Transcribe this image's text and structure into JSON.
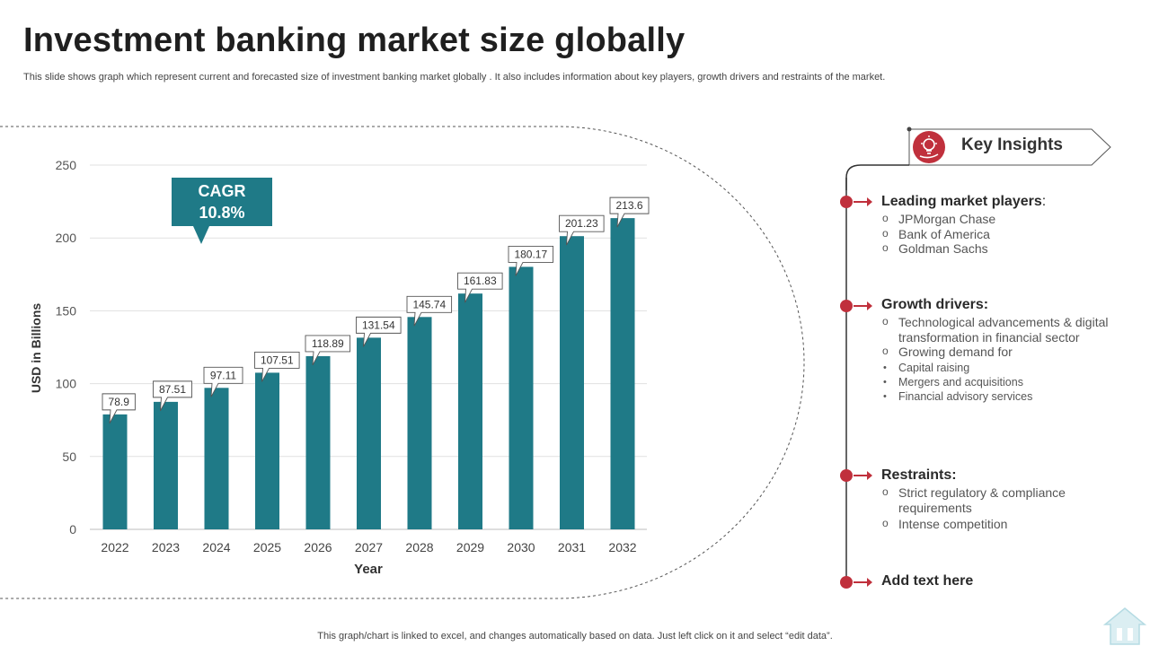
{
  "header": {
    "title": "Investment banking market size globally",
    "subtitle": "This slide shows graph which represent current and forecasted size of investment banking market globally . It also includes information about key players, growth drivers and restraints of the market."
  },
  "chart_data": {
    "type": "bar",
    "categories": [
      "2022",
      "2023",
      "2024",
      "2025",
      "2026",
      "2027",
      "2028",
      "2029",
      "2030",
      "2031",
      "2032"
    ],
    "values": [
      78.9,
      87.51,
      97.11,
      107.51,
      118.89,
      131.54,
      145.74,
      161.83,
      180.17,
      201.23,
      213.6
    ],
    "data_labels": [
      "78.9",
      "87.51",
      "97.11",
      "107.51",
      "118.89",
      "131.54",
      "145.74",
      "161.83",
      "180.17",
      "201.23",
      "213.6"
    ],
    "xlabel": "Year",
    "ylabel": "USD in Billions",
    "ylim": [
      0,
      250
    ],
    "yticks": [
      0,
      50,
      100,
      150,
      200,
      250
    ],
    "bar_color": "#1f7a87",
    "grid": true,
    "annotation": {
      "label": "CAGR",
      "value": "10.8%"
    }
  },
  "insights": {
    "title": "Key Insights",
    "accent": "#c0303c",
    "sections": [
      {
        "heading": "Leading market players",
        "heading_suffix": ":",
        "items": [
          "JPMorgan Chase",
          "Bank of America",
          "Goldman Sachs"
        ]
      },
      {
        "heading": "Growth drivers:",
        "items": [
          "Technological advancements & digital transformation in financial sector",
          "Growing demand for"
        ],
        "subitems": [
          "Capital raising",
          "Mergers and acquisitions",
          "Financial advisory services"
        ]
      },
      {
        "heading": "Restraints:",
        "items": [
          "Strict regulatory & compliance requirements",
          "Intense competition"
        ]
      },
      {
        "heading": "Add text here"
      }
    ]
  },
  "footer": {
    "note": "This graph/chart is linked to excel,  and changes automatically based on data. Just left click on it and select “edit data”."
  }
}
